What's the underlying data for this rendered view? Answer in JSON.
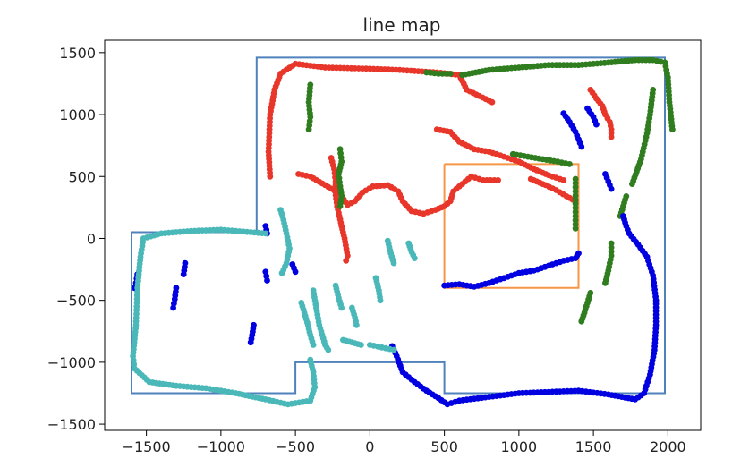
{
  "chart_data": {
    "type": "scatter",
    "title": "line map",
    "xlabel": "",
    "ylabel": "",
    "xlim": [
      -1780,
      2220
    ],
    "ylim": [
      -1550,
      1600
    ],
    "x_ticks": [
      -1500,
      -1000,
      -500,
      0,
      500,
      1000,
      1500,
      2000
    ],
    "y_ticks": [
      1500,
      1000,
      500,
      0,
      -500,
      -1000,
      -1500
    ],
    "x_tick_labels": [
      "−1500",
      "−1000",
      "−500",
      "0",
      "500",
      "1000",
      "1500",
      "2000"
    ],
    "y_tick_labels": [
      "1500",
      "1000",
      "500",
      "0",
      "−500",
      "−1000",
      "−1500"
    ],
    "grid": false,
    "lines": [
      {
        "color": "#4f81bd",
        "points": [
          [
            -760,
            50
          ],
          [
            -760,
            1460
          ],
          [
            1980,
            1460
          ],
          [
            1980,
            -1250
          ],
          [
            500,
            -1250
          ],
          [
            500,
            -1000
          ],
          [
            -500,
            -1000
          ],
          [
            -500,
            -1250
          ],
          [
            -1600,
            -1250
          ],
          [
            -1600,
            50
          ],
          [
            -760,
            50
          ]
        ]
      },
      {
        "color": "#f79646",
        "points": [
          [
            500,
            600
          ],
          [
            1400,
            600
          ],
          [
            1400,
            -400
          ],
          [
            500,
            -400
          ],
          [
            500,
            600
          ]
        ]
      }
    ],
    "series": [
      {
        "color": "#e8362a",
        "segments": [
          [
            [
              -670,
              500
            ],
            [
              -680,
              700
            ],
            [
              -670,
              1000
            ],
            [
              -640,
              1200
            ],
            [
              -600,
              1330
            ],
            [
              -500,
              1410
            ],
            [
              -300,
              1380
            ],
            [
              0,
              1370
            ],
            [
              200,
              1360
            ],
            [
              450,
              1340
            ],
            [
              600,
              1320
            ],
            [
              650,
              1200
            ],
            [
              820,
              1100
            ]
          ],
          [
            [
              -480,
              520
            ],
            [
              -400,
              500
            ],
            [
              -300,
              430
            ],
            [
              -200,
              360
            ],
            [
              -150,
              270
            ],
            [
              -100,
              300
            ],
            [
              -50,
              370
            ],
            [
              20,
              420
            ],
            [
              120,
              430
            ],
            [
              190,
              380
            ],
            [
              220,
              300
            ],
            [
              280,
              220
            ],
            [
              360,
              200
            ],
            [
              440,
              230
            ],
            [
              500,
              260
            ],
            [
              540,
              300
            ],
            [
              560,
              380
            ],
            [
              620,
              440
            ],
            [
              680,
              500
            ],
            [
              760,
              470
            ],
            [
              860,
              470
            ]
          ],
          [
            [
              -260,
              650
            ],
            [
              -240,
              560
            ],
            [
              -230,
              460
            ],
            [
              -230,
              350
            ],
            [
              -220,
              260
            ],
            [
              -190,
              100
            ],
            [
              -170,
              0
            ],
            [
              -150,
              -140
            ],
            [
              -160,
              -180
            ]
          ],
          [
            [
              450,
              880
            ],
            [
              540,
              860
            ],
            [
              600,
              780
            ],
            [
              700,
              720
            ],
            [
              800,
              700
            ],
            [
              900,
              660
            ],
            [
              1000,
              620
            ],
            [
              1100,
              560
            ],
            [
              1200,
              510
            ],
            [
              1300,
              470
            ]
          ],
          [
            [
              1080,
              480
            ],
            [
              1180,
              430
            ],
            [
              1250,
              390
            ],
            [
              1320,
              340
            ],
            [
              1380,
              300
            ]
          ],
          [
            [
              1480,
              1200
            ],
            [
              1520,
              1130
            ],
            [
              1560,
              1070
            ],
            [
              1580,
              1000
            ],
            [
              1610,
              940
            ],
            [
              1620,
              880
            ],
            [
              1620,
              820
            ]
          ]
        ]
      },
      {
        "color": "#2f7d1f",
        "segments": [
          [
            [
              620,
              1320
            ],
            [
              800,
              1360
            ],
            [
              1000,
              1380
            ],
            [
              1200,
              1400
            ],
            [
              1400,
              1400
            ],
            [
              1600,
              1420
            ],
            [
              1780,
              1440
            ],
            [
              1900,
              1440
            ],
            [
              1980,
              1420
            ],
            [
              2000,
              1300
            ],
            [
              2010,
              1100
            ],
            [
              2030,
              880
            ]
          ],
          [
            [
              -400,
              1240
            ],
            [
              -410,
              1100
            ],
            [
              -400,
              980
            ],
            [
              -410,
              880
            ]
          ],
          [
            [
              -200,
              720
            ],
            [
              -190,
              620
            ],
            [
              -210,
              520
            ],
            [
              -200,
              420
            ],
            [
              -190,
              340
            ],
            [
              -200,
              260
            ]
          ],
          [
            [
              380,
              1340
            ],
            [
              460,
              1330
            ],
            [
              540,
              1330
            ]
          ],
          [
            [
              960,
              680
            ],
            [
              1060,
              660
            ],
            [
              1160,
              640
            ],
            [
              1260,
              620
            ],
            [
              1340,
              600
            ]
          ],
          [
            [
              1380,
              480
            ],
            [
              1380,
              380
            ],
            [
              1380,
              280
            ],
            [
              1380,
              180
            ],
            [
              1380,
              80
            ]
          ],
          [
            [
              1900,
              1200
            ],
            [
              1880,
              1000
            ],
            [
              1860,
              850
            ],
            [
              1820,
              640
            ],
            [
              1790,
              540
            ],
            [
              1760,
              440
            ]
          ],
          [
            [
              1720,
              340
            ],
            [
              1700,
              260
            ],
            [
              1680,
              180
            ]
          ],
          [
            [
              1620,
              -40
            ],
            [
              1620,
              -140
            ],
            [
              1600,
              -260
            ],
            [
              1580,
              -360
            ]
          ],
          [
            [
              1480,
              -440
            ],
            [
              1460,
              -520
            ],
            [
              1440,
              -600
            ],
            [
              1420,
              -670
            ]
          ]
        ]
      },
      {
        "color": "#0000e0",
        "segments": [
          [
            [
              500,
              -380
            ],
            [
              600,
              -370
            ],
            [
              700,
              -390
            ],
            [
              800,
              -360
            ],
            [
              900,
              -320
            ],
            [
              1000,
              -280
            ],
            [
              1100,
              -260
            ],
            [
              1200,
              -220
            ],
            [
              1300,
              -180
            ],
            [
              1380,
              -160
            ],
            [
              1400,
              -120
            ]
          ],
          [
            [
              1300,
              1010
            ],
            [
              1340,
              940
            ],
            [
              1380,
              860
            ],
            [
              1400,
              800
            ],
            [
              1420,
              740
            ]
          ],
          [
            [
              1460,
              1050
            ],
            [
              1500,
              980
            ],
            [
              1520,
              920
            ]
          ],
          [
            [
              1580,
              520
            ],
            [
              1600,
              460
            ],
            [
              1620,
              400
            ]
          ],
          [
            [
              1700,
              180
            ],
            [
              1720,
              100
            ],
            [
              1740,
              40
            ],
            [
              1800,
              -50
            ],
            [
              1860,
              -150
            ],
            [
              1900,
              -300
            ],
            [
              1920,
              -500
            ],
            [
              1920,
              -700
            ],
            [
              1910,
              -900
            ],
            [
              1880,
              -1100
            ],
            [
              1840,
              -1250
            ],
            [
              1780,
              -1300
            ],
            [
              1600,
              -1260
            ],
            [
              1400,
              -1230
            ],
            [
              1200,
              -1240
            ],
            [
              1000,
              -1250
            ],
            [
              800,
              -1280
            ],
            [
              600,
              -1310
            ],
            [
              520,
              -1340
            ],
            [
              460,
              -1290
            ],
            [
              380,
              -1230
            ],
            [
              300,
              -1160
            ],
            [
              220,
              -1080
            ],
            [
              180,
              -950
            ],
            [
              150,
              -870
            ]
          ],
          [
            [
              -1560,
              -290
            ],
            [
              -1570,
              -360
            ],
            [
              -1580,
              -400
            ]
          ],
          [
            [
              -1300,
              -400
            ],
            [
              -1310,
              -490
            ],
            [
              -1320,
              -560
            ]
          ],
          [
            [
              -1240,
              -200
            ],
            [
              -1250,
              -290
            ]
          ],
          [
            [
              -780,
              -700
            ],
            [
              -790,
              -780
            ],
            [
              -800,
              -840
            ]
          ],
          [
            [
              -700,
              -270
            ],
            [
              -690,
              -340
            ]
          ],
          [
            [
              -520,
              -210
            ],
            [
              -500,
              -270
            ]
          ],
          [
            [
              -700,
              100
            ],
            [
              -690,
              40
            ]
          ]
        ]
      },
      {
        "color": "#4ab8b8",
        "segments": [
          [
            [
              -700,
              40
            ],
            [
              -800,
              50
            ],
            [
              -1000,
              70
            ],
            [
              -1200,
              60
            ],
            [
              -1400,
              40
            ],
            [
              -1520,
              0
            ],
            [
              -1540,
              -150
            ],
            [
              -1560,
              -400
            ],
            [
              -1570,
              -700
            ],
            [
              -1590,
              -950
            ],
            [
              -1580,
              -1050
            ],
            [
              -1480,
              -1160
            ],
            [
              -1300,
              -1190
            ],
            [
              -1100,
              -1210
            ],
            [
              -900,
              -1250
            ],
            [
              -700,
              -1300
            ],
            [
              -550,
              -1340
            ],
            [
              -400,
              -1310
            ],
            [
              -370,
              -1200
            ],
            [
              -380,
              -1080
            ],
            [
              -400,
              -980
            ]
          ],
          [
            [
              -600,
              230
            ],
            [
              -580,
              150
            ],
            [
              -560,
              40
            ],
            [
              -540,
              -80
            ],
            [
              -560,
              -200
            ],
            [
              -590,
              -280
            ]
          ],
          [
            [
              -380,
              -420
            ],
            [
              -360,
              -560
            ],
            [
              -340,
              -700
            ],
            [
              -320,
              -780
            ],
            [
              -300,
              -860
            ],
            [
              -280,
              -900
            ]
          ],
          [
            [
              -230,
              -380
            ],
            [
              -210,
              -480
            ],
            [
              -190,
              -560
            ]
          ],
          [
            [
              -120,
              -560
            ],
            [
              -100,
              -640
            ],
            [
              -90,
              -700
            ]
          ],
          [
            [
              40,
              -320
            ],
            [
              60,
              -420
            ],
            [
              70,
              -500
            ]
          ],
          [
            [
              120,
              -20
            ],
            [
              140,
              -120
            ],
            [
              160,
              -200
            ]
          ],
          [
            [
              260,
              -40
            ],
            [
              280,
              -110
            ],
            [
              300,
              -160
            ]
          ],
          [
            [
              -460,
              -520
            ],
            [
              -440,
              -600
            ],
            [
              -420,
              -680
            ],
            [
              -400,
              -780
            ],
            [
              -380,
              -860
            ]
          ],
          [
            [
              -180,
              -820
            ],
            [
              -120,
              -840
            ],
            [
              -60,
              -860
            ]
          ],
          [
            [
              0,
              -860
            ],
            [
              80,
              -880
            ],
            [
              160,
              -900
            ]
          ]
        ]
      }
    ]
  }
}
